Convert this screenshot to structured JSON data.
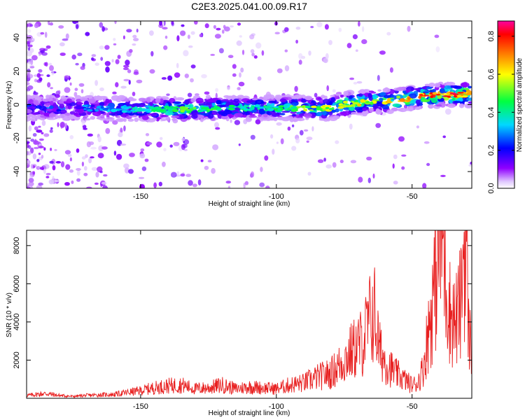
{
  "title": "C2E3.2025.041.00.09.R17",
  "chart_data": [
    {
      "type": "heatmap",
      "title": "C2E3.2025.041.00.09.R17",
      "xlabel": "Height of straight line (km)",
      "ylabel": "Frequency (Hz)",
      "xlim": [
        -192,
        -28
      ],
      "ylim": [
        -50,
        50
      ],
      "xticks": [
        -150,
        -100,
        -50
      ],
      "yticks": [
        -40,
        -20,
        0,
        20,
        40
      ],
      "colorbar": {
        "label": "Normalized spectral amplitude",
        "range": [
          0.0,
          0.88
        ],
        "ticks": [
          0.0,
          0.2,
          0.4,
          0.6,
          0.8
        ],
        "colormap": [
          "#ffffff",
          "#8f00ff",
          "#0000ff",
          "#00d8ff",
          "#00ff40",
          "#ffff00",
          "#ff8000",
          "#ff0000",
          "#ff00a0"
        ]
      },
      "ridge": [
        {
          "x": -190,
          "freq": -2,
          "amp": 0.28
        },
        {
          "x": -170,
          "freq": -2,
          "amp": 0.3
        },
        {
          "x": -150,
          "freq": -3,
          "amp": 0.4
        },
        {
          "x": -135,
          "freq": -3,
          "amp": 0.55
        },
        {
          "x": -120,
          "freq": -2,
          "amp": 0.45
        },
        {
          "x": -100,
          "freq": -2,
          "amp": 0.45
        },
        {
          "x": -90,
          "freq": -2,
          "amp": 0.55
        },
        {
          "x": -80,
          "freq": -2,
          "amp": 0.6
        },
        {
          "x": -75,
          "freq": 0,
          "amp": 0.65
        },
        {
          "x": -65,
          "freq": 2,
          "amp": 0.6
        },
        {
          "x": -55,
          "freq": 3,
          "amp": 0.7
        },
        {
          "x": -45,
          "freq": 5,
          "amp": 0.8
        },
        {
          "x": -35,
          "freq": 6,
          "amp": 0.85
        },
        {
          "x": -30,
          "freq": 6,
          "amp": 0.8
        }
      ]
    },
    {
      "type": "line",
      "xlabel": "Height of straight line (km)",
      "ylabel": "SNR (10 * v/v)",
      "xlim": [
        -192,
        -28
      ],
      "ylim": [
        0,
        8800
      ],
      "xticks": [
        -150,
        -100,
        -50
      ],
      "yticks": [
        2000,
        4000,
        6000,
        8000
      ],
      "color": "#e82020",
      "series": [
        {
          "x": [
            -192,
            -185,
            -180,
            -175,
            -170,
            -165,
            -160,
            -155,
            -150,
            -145,
            -140,
            -135,
            -130,
            -125,
            -120,
            -115,
            -110,
            -105,
            -100,
            -95,
            -90,
            -85,
            -80,
            -75,
            -72,
            -68,
            -66,
            -64,
            -62,
            -60,
            -58,
            -56,
            -54,
            -52,
            -50,
            -48,
            -46,
            -44,
            -42,
            -41,
            -40,
            -39,
            -38,
            -36,
            -34,
            -32,
            -31,
            -30,
            -29
          ],
          "values": [
            150,
            250,
            150,
            100,
            150,
            180,
            200,
            300,
            400,
            550,
            650,
            700,
            500,
            550,
            700,
            500,
            600,
            550,
            500,
            700,
            800,
            1100,
            1300,
            2000,
            2500,
            3000,
            3900,
            4600,
            2500,
            2000,
            1600,
            1300,
            1100,
            900,
            700,
            800,
            1500,
            3500,
            5500,
            7000,
            8500,
            8800,
            7000,
            4500,
            4000,
            5000,
            8000,
            8300,
            3000
          ]
        }
      ]
    }
  ]
}
